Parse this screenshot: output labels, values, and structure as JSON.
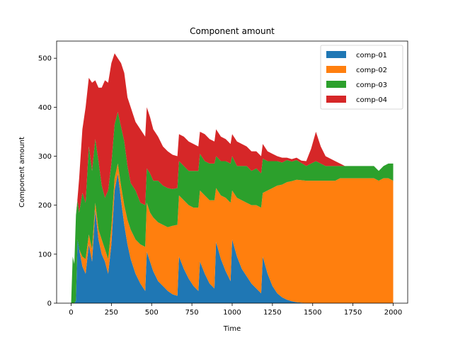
{
  "chart_data": {
    "type": "area",
    "title": "Component amount",
    "xlabel": "Time",
    "ylabel": "Component amount",
    "xlim": [
      -90,
      2090
    ],
    "ylim": [
      0,
      535
    ],
    "xticks": [
      0,
      250,
      500,
      750,
      1000,
      1250,
      1500,
      1750,
      2000
    ],
    "yticks": [
      0,
      100,
      200,
      300,
      400,
      500
    ],
    "legend_position": "top-right",
    "grid": false,
    "stacked": true,
    "x": [
      0,
      10,
      20,
      30,
      40,
      50,
      70,
      90,
      110,
      130,
      150,
      170,
      190,
      210,
      230,
      250,
      270,
      290,
      310,
      330,
      350,
      370,
      400,
      430,
      460,
      470,
      490,
      510,
      540,
      570,
      600,
      630,
      660,
      670,
      700,
      730,
      760,
      790,
      800,
      830,
      860,
      890,
      900,
      930,
      960,
      990,
      1000,
      1030,
      1060,
      1090,
      1120,
      1150,
      1180,
      1190,
      1220,
      1250,
      1280,
      1310,
      1340,
      1370,
      1400,
      1430,
      1460,
      1490,
      1520,
      1550,
      1580,
      1610,
      1640,
      1670,
      1700,
      1730,
      1760,
      1790,
      1820,
      1850,
      1880,
      1910,
      1940,
      1970,
      2000
    ],
    "series": [
      {
        "name": "comp-01",
        "color": "#1f77b4",
        "values": [
          0,
          0,
          0,
          5,
          130,
          110,
          75,
          60,
          120,
          85,
          190,
          130,
          100,
          85,
          60,
          120,
          230,
          265,
          210,
          160,
          120,
          90,
          60,
          40,
          25,
          105,
          85,
          65,
          45,
          35,
          25,
          18,
          15,
          95,
          70,
          50,
          35,
          25,
          85,
          60,
          40,
          30,
          125,
          90,
          65,
          45,
          130,
          95,
          70,
          55,
          40,
          30,
          20,
          95,
          60,
          35,
          20,
          12,
          7,
          4,
          2,
          1,
          0,
          0,
          0,
          0,
          0,
          0,
          0,
          0,
          0,
          0,
          0,
          0,
          0,
          0,
          0,
          0,
          0,
          0,
          0
        ]
      },
      {
        "name": "comp-02",
        "color": "#ff7f0e",
        "values": [
          0,
          0,
          0,
          0,
          0,
          0,
          20,
          30,
          20,
          25,
          15,
          20,
          30,
          25,
          30,
          35,
          25,
          20,
          30,
          40,
          50,
          60,
          70,
          80,
          90,
          100,
          100,
          110,
          120,
          125,
          130,
          140,
          145,
          125,
          140,
          150,
          160,
          170,
          145,
          160,
          170,
          180,
          110,
          130,
          150,
          160,
          100,
          120,
          140,
          150,
          160,
          170,
          175,
          130,
          170,
          200,
          220,
          230,
          240,
          245,
          250,
          250,
          250,
          250,
          250,
          250,
          250,
          250,
          250,
          255,
          255,
          255,
          255,
          255,
          255,
          255,
          255,
          250,
          255,
          255,
          250
        ]
      },
      {
        "name": "comp-03",
        "color": "#2ca02c",
        "values": [
          0,
          95,
          80,
          175,
          80,
          75,
          130,
          115,
          180,
          160,
          130,
          140,
          110,
          105,
          140,
          130,
          110,
          105,
          120,
          130,
          110,
          95,
          100,
          85,
          85,
          70,
          80,
          75,
          85,
          80,
          80,
          75,
          75,
          70,
          70,
          70,
          75,
          75,
          75,
          70,
          75,
          75,
          65,
          70,
          75,
          80,
          70,
          65,
          70,
          75,
          70,
          75,
          70,
          70,
          60,
          55,
          50,
          45,
          45,
          40,
          40,
          35,
          30,
          35,
          40,
          35,
          30,
          30,
          30,
          25,
          25,
          25,
          25,
          25,
          25,
          25,
          25,
          20,
          25,
          30,
          35
        ]
      },
      {
        "name": "comp-04",
        "color": "#d62728",
        "values": [
          0,
          0,
          0,
          0,
          5,
          70,
          130,
          195,
          140,
          180,
          120,
          150,
          200,
          240,
          220,
          205,
          145,
          110,
          130,
          140,
          140,
          155,
          140,
          150,
          140,
          125,
          115,
          105,
          90,
          80,
          75,
          70,
          65,
          55,
          60,
          60,
          55,
          50,
          45,
          55,
          50,
          45,
          55,
          50,
          45,
          40,
          45,
          50,
          45,
          40,
          40,
          35,
          35,
          30,
          20,
          15,
          10,
          10,
          5,
          5,
          5,
          5,
          10,
          30,
          60,
          35,
          20,
          15,
          10,
          5,
          0,
          0,
          0,
          0,
          0,
          0,
          0,
          0,
          0,
          0,
          0
        ]
      }
    ]
  }
}
